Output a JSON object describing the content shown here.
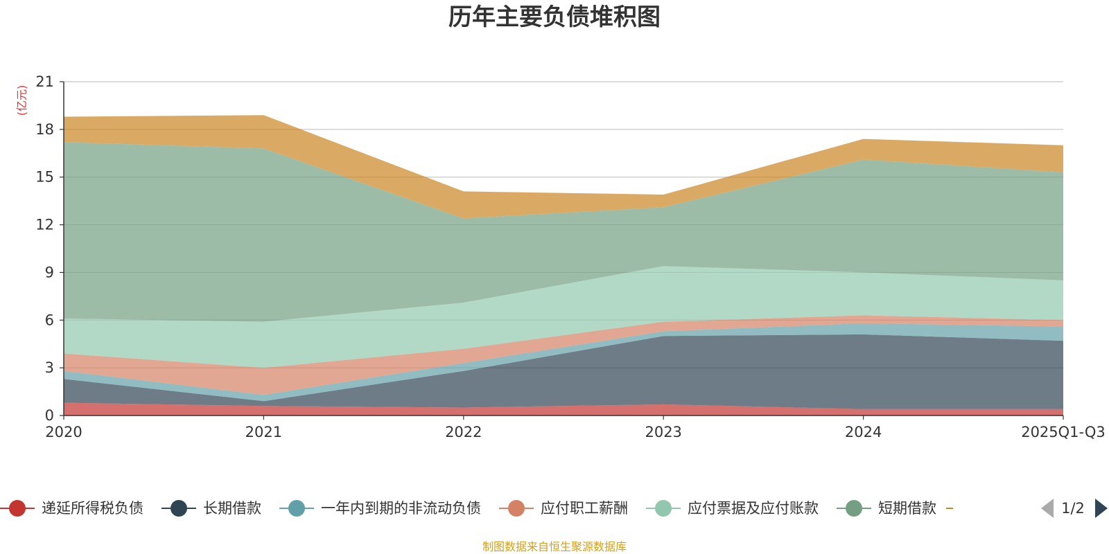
{
  "chart_data": {
    "type": "area",
    "stacked": true,
    "title": "历年主要负债堆积图",
    "ylabel": "(亿元)",
    "xlabel": "",
    "ylim": [
      0,
      21
    ],
    "yticks": [
      0,
      3,
      6,
      9,
      12,
      15,
      18,
      21
    ],
    "grid": true,
    "categories": [
      "2020",
      "2021",
      "2022",
      "2023",
      "2024",
      "2025Q1-Q3"
    ],
    "series": [
      {
        "name": "递延所得税负债",
        "color": "#c23531",
        "values": [
          0.8,
          0.6,
          0.5,
          0.7,
          0.4,
          0.4
        ]
      },
      {
        "name": "长期借款",
        "color": "#2f4554",
        "values": [
          1.5,
          0.3,
          2.3,
          4.3,
          4.7,
          4.3
        ]
      },
      {
        "name": "一年内到期的非流动负债",
        "color": "#61a0a8",
        "values": [
          0.5,
          0.4,
          0.5,
          0.3,
          0.7,
          0.9
        ]
      },
      {
        "name": "应付职工薪酬",
        "color": "#d48265",
        "values": [
          1.1,
          1.7,
          0.9,
          0.6,
          0.5,
          0.4
        ]
      },
      {
        "name": "应付票据及应付账款",
        "color": "#91c7ae",
        "values": [
          2.2,
          2.9,
          2.9,
          3.5,
          2.7,
          2.5
        ]
      },
      {
        "name": "短期借款",
        "color": "#749f83",
        "values": [
          11.1,
          10.9,
          5.3,
          3.7,
          7.1,
          6.8
        ]
      },
      {
        "name": "",
        "color": "#ca8622",
        "values": [
          1.6,
          2.1,
          1.7,
          0.8,
          1.3,
          1.7
        ]
      }
    ],
    "legend": {
      "items": [
        "递延所得税负债",
        "长期借款",
        "一年内到期的非流动负债",
        "应付职工薪酬",
        "应付票据及应付账款",
        "短期借款"
      ],
      "page": "1/2"
    },
    "source": "制图数据来自恒生聚源数据库"
  }
}
